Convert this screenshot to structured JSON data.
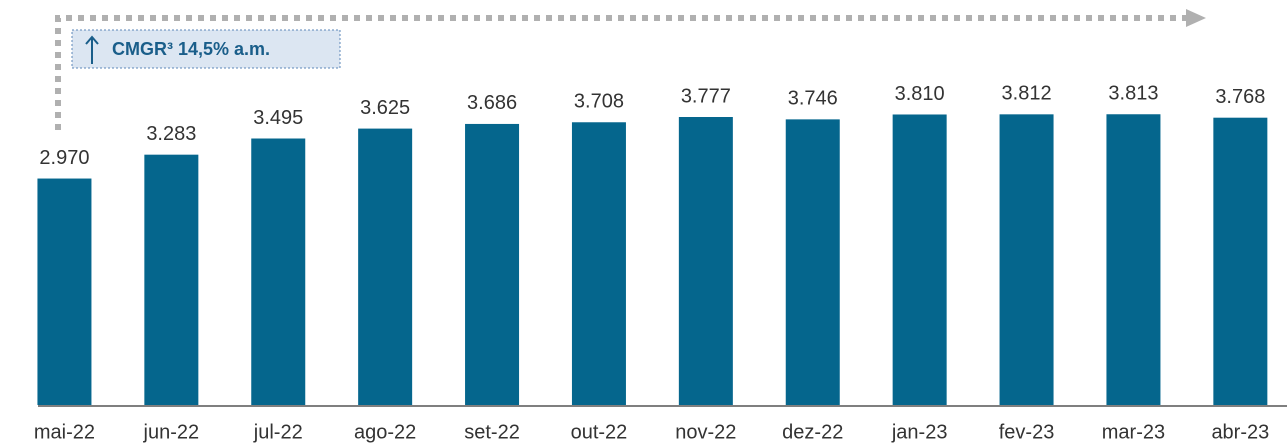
{
  "chart_data": {
    "type": "bar",
    "annotation": "CMGR³ 14,5% a.m.",
    "categories": [
      "mai-22",
      "jun-22",
      "jul-22",
      "ago-22",
      "set-22",
      "out-22",
      "nov-22",
      "dez-22",
      "jan-23",
      "fev-23",
      "mar-23",
      "abr-23"
    ],
    "values": [
      2970,
      3283,
      3495,
      3625,
      3686,
      3708,
      3777,
      3746,
      3810,
      3812,
      3813,
      3768
    ],
    "value_labels": [
      "2.970",
      "3.283",
      "3.495",
      "3.625",
      "3.686",
      "3.708",
      "3.777",
      "3.746",
      "3.810",
      "3.812",
      "3.813",
      "3.768"
    ],
    "color": "#05668d",
    "ylim": [
      0,
      4000
    ]
  }
}
